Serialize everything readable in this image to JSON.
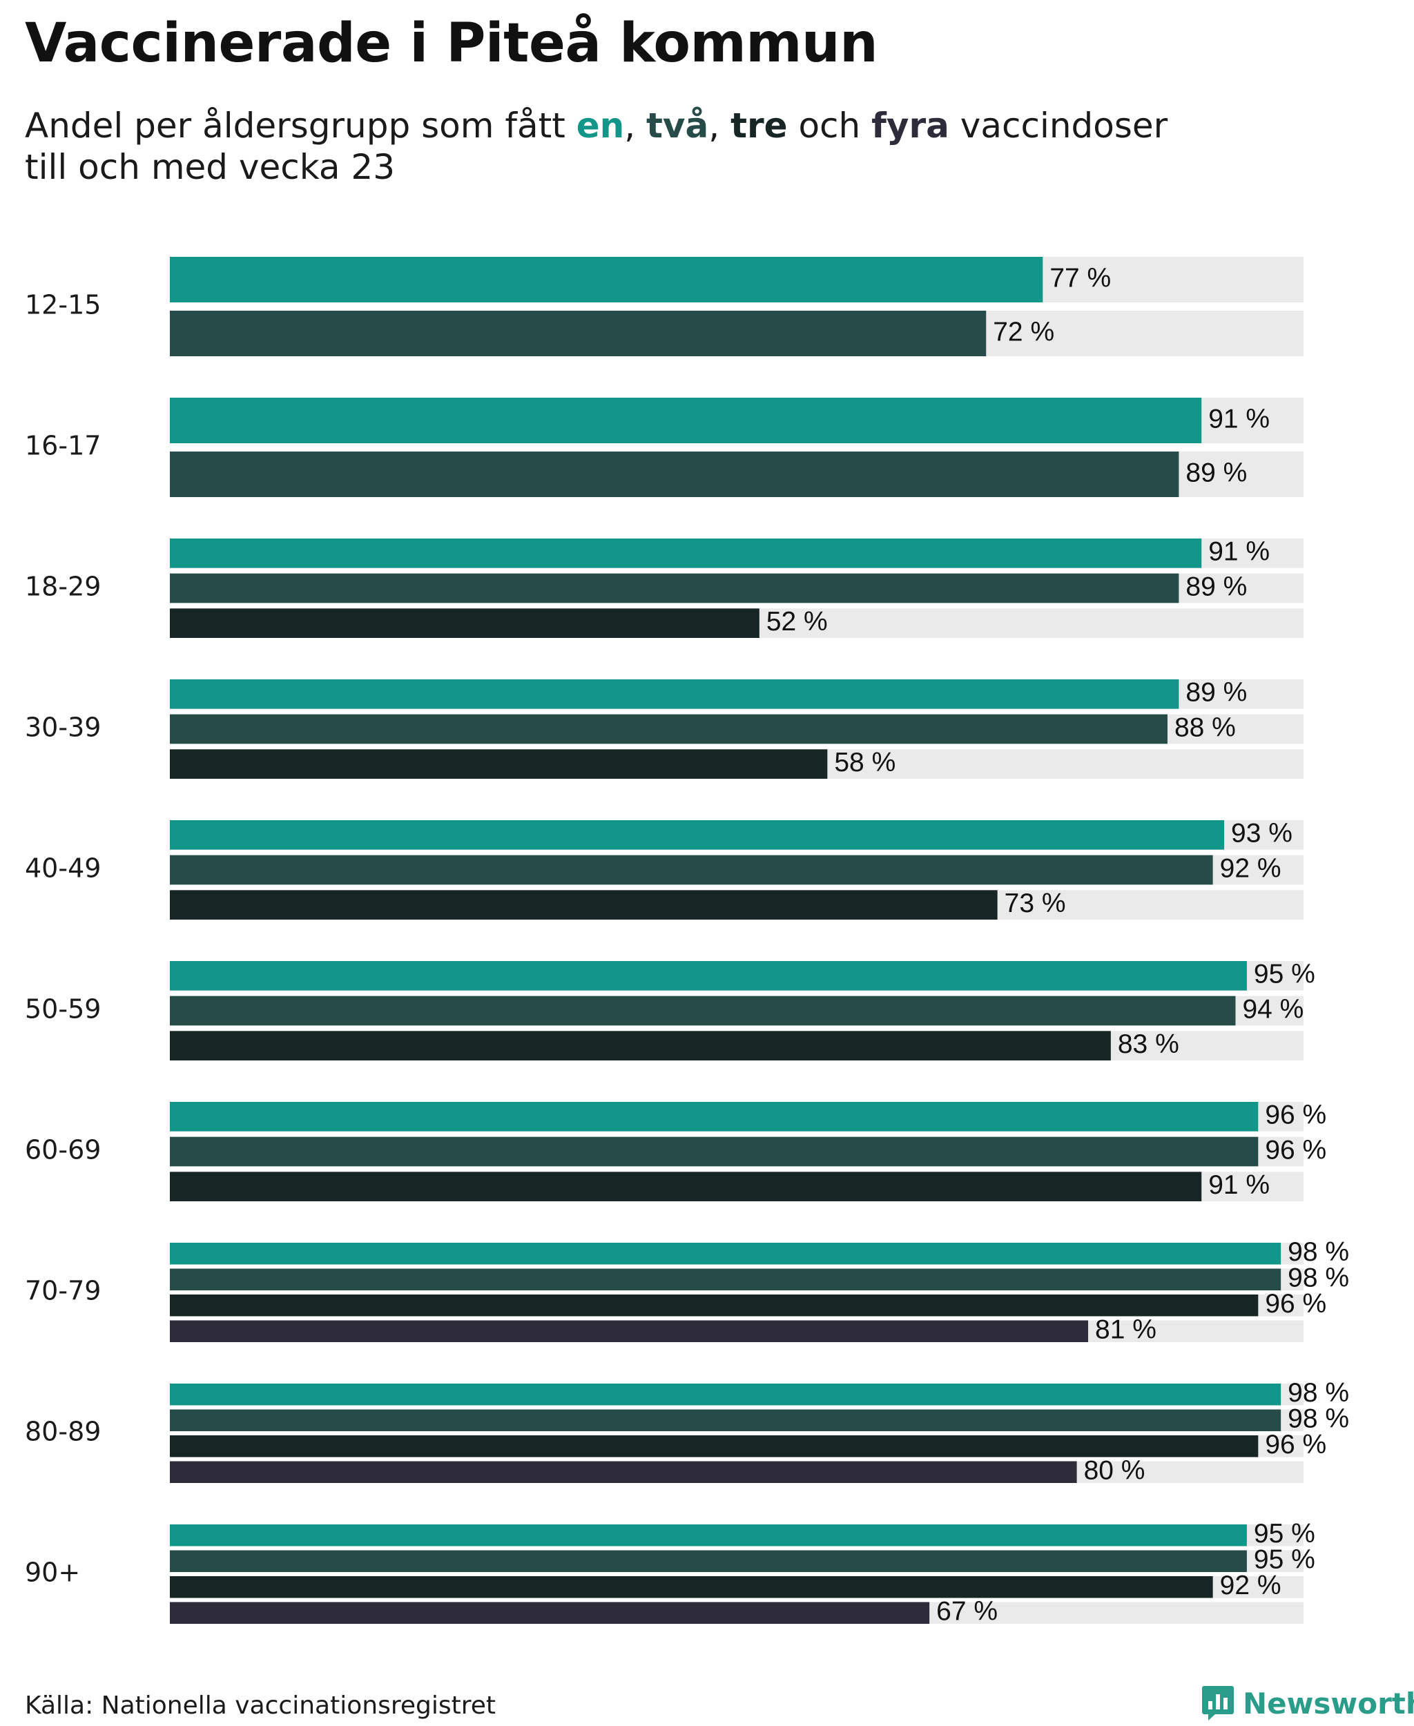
{
  "title": "Vaccinerade i Piteå kommun",
  "subtitle": {
    "prefix": "Andel per åldersgrupp som fått ",
    "k1": "en",
    "sep1": ", ",
    "k2": "två",
    "sep2": ", ",
    "k3": "tre",
    "mid": " och ",
    "k4": "fyra",
    "suffix": " vaccindoser",
    "line2": "till och med vecka 23"
  },
  "colors": {
    "dose1": "#13968a",
    "dose2": "#264b49",
    "dose3": "#172625",
    "dose4": "#2e2c3a",
    "track": "#eaeaea",
    "brand": "#2a9d8a"
  },
  "chart_data": {
    "type": "bar",
    "orientation": "horizontal",
    "value_unit": "%",
    "xlim": [
      0,
      100
    ],
    "series_names": [
      "en",
      "två",
      "tre",
      "fyra"
    ],
    "groups": [
      {
        "label": "12-15",
        "values": [
          77,
          72
        ]
      },
      {
        "label": "16-17",
        "values": [
          91,
          89
        ]
      },
      {
        "label": "18-29",
        "values": [
          91,
          89,
          52
        ]
      },
      {
        "label": "30-39",
        "values": [
          89,
          88,
          58
        ]
      },
      {
        "label": "40-49",
        "values": [
          93,
          92,
          73
        ]
      },
      {
        "label": "50-59",
        "values": [
          95,
          94,
          83
        ]
      },
      {
        "label": "60-69",
        "values": [
          96,
          96,
          91
        ]
      },
      {
        "label": "70-79",
        "values": [
          98,
          98,
          96,
          81
        ]
      },
      {
        "label": "80-89",
        "values": [
          98,
          98,
          96,
          80
        ]
      },
      {
        "label": "90+",
        "values": [
          95,
          95,
          92,
          67
        ]
      }
    ]
  },
  "source": "Källa: Nationella vaccinationsregistret",
  "brand": {
    "name": "Newsworthy",
    "icon": "bar-chart-speech-icon"
  }
}
